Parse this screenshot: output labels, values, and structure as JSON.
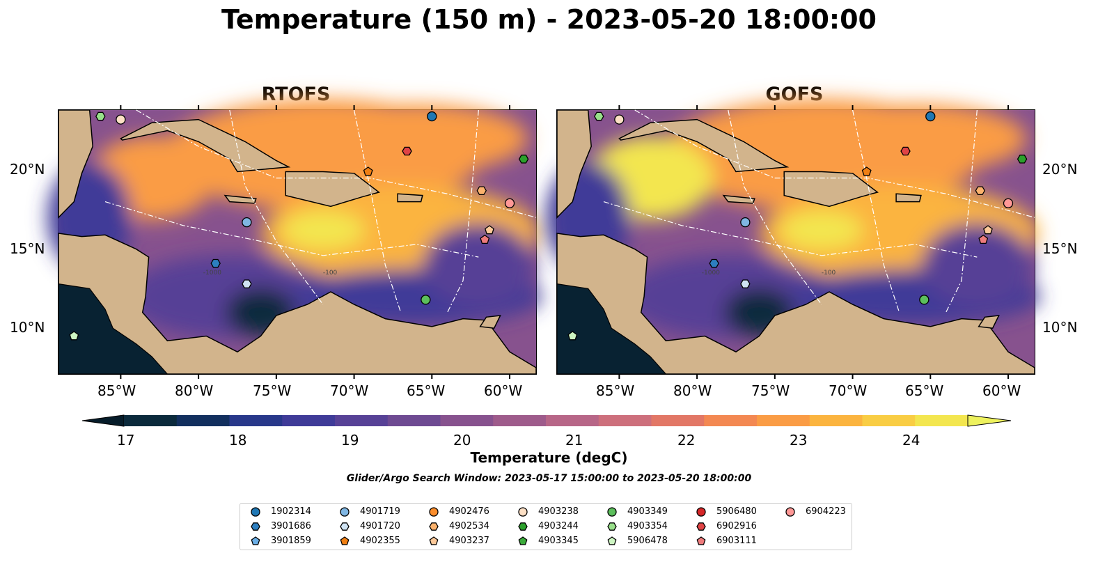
{
  "title": "Temperature (150 m) - 2023-05-20 18:00:00",
  "panels": [
    {
      "subtitle": "RTOFS"
    },
    {
      "subtitle": "GOFS"
    }
  ],
  "axes": {
    "lon_ticks": [
      "85°W",
      "80°W",
      "75°W",
      "70°W",
      "65°W",
      "60°W"
    ],
    "lat_ticks": [
      "20°N",
      "15°N",
      "10°N"
    ]
  },
  "contour_labels": [
    "-100",
    "-1000"
  ],
  "colorbar": {
    "ticks": [
      "17",
      "18",
      "19",
      "20",
      "21",
      "22",
      "23",
      "24"
    ],
    "label": "Temperature (degC)",
    "colors": [
      "#0b2a3c",
      "#122f5e",
      "#28388a",
      "#3f3b98",
      "#574196",
      "#6e4a92",
      "#87528e",
      "#9e5b8b",
      "#b76687",
      "#cd6f7c",
      "#e27766",
      "#f38852",
      "#fa9c45",
      "#fbb43f",
      "#f9cd44",
      "#f3e64f"
    ],
    "under_color": "#061c2a",
    "over_color": "#eef25e"
  },
  "search_window": "Glider/Argo Search Window: 2023-05-17 15:00:00 to 2023-05-20 18:00:00",
  "legend": [
    {
      "id": "1902314",
      "marker": "circle",
      "color": "#1f77b4"
    },
    {
      "id": "3901686",
      "marker": "hexagon",
      "color": "#2d7fc0"
    },
    {
      "id": "3901859",
      "marker": "pentagon",
      "color": "#6aaee6"
    },
    {
      "id": "4901719",
      "marker": "circle",
      "color": "#7fb6e3"
    },
    {
      "id": "4901720",
      "marker": "hexagon",
      "color": "#cfe3f3"
    },
    {
      "id": "4902355",
      "marker": "pentagon",
      "color": "#f07f13"
    },
    {
      "id": "4902476",
      "marker": "circle",
      "color": "#fb8d2b"
    },
    {
      "id": "4902534",
      "marker": "hexagon",
      "color": "#fbb26d"
    },
    {
      "id": "4903237",
      "marker": "pentagon",
      "color": "#fdc999"
    },
    {
      "id": "4903238",
      "marker": "circle",
      "color": "#fde0c5"
    },
    {
      "id": "4903244",
      "marker": "hexagon",
      "color": "#2ca02c"
    },
    {
      "id": "4903345",
      "marker": "pentagon",
      "color": "#3bab3b"
    },
    {
      "id": "4903349",
      "marker": "circle",
      "color": "#5cbf5c"
    },
    {
      "id": "4903354",
      "marker": "hexagon",
      "color": "#98df8a"
    },
    {
      "id": "5906478",
      "marker": "pentagon",
      "color": "#cdf5c2"
    },
    {
      "id": "5906480",
      "marker": "circle",
      "color": "#d62728"
    },
    {
      "id": "6902916",
      "marker": "hexagon",
      "color": "#e04445"
    },
    {
      "id": "6903111",
      "marker": "pentagon",
      "color": "#ee7b7c"
    },
    {
      "id": "6904223",
      "marker": "circle",
      "color": "#ff9896"
    }
  ],
  "floats": [
    {
      "id": "4903354",
      "lon": -86.3,
      "lat": 23.4
    },
    {
      "id": "4903238",
      "lon": -85.0,
      "lat": 23.2
    },
    {
      "id": "1902314",
      "lon": -65.0,
      "lat": 23.4
    },
    {
      "id": "6902916",
      "lon": -66.6,
      "lat": 21.2
    },
    {
      "id": "4903244",
      "lon": -59.1,
      "lat": 20.7
    },
    {
      "id": "4902355",
      "lon": -69.1,
      "lat": 19.9
    },
    {
      "id": "4902534",
      "lon": -61.8,
      "lat": 18.7
    },
    {
      "id": "6904223",
      "lon": -60.0,
      "lat": 17.9
    },
    {
      "id": "4901719",
      "lon": -76.9,
      "lat": 16.7
    },
    {
      "id": "4903237",
      "lon": -61.3,
      "lat": 16.2
    },
    {
      "id": "6903111",
      "lon": -61.6,
      "lat": 15.6
    },
    {
      "id": "3901686",
      "lon": -78.9,
      "lat": 14.1
    },
    {
      "id": "4901720",
      "lon": -76.9,
      "lat": 12.8
    },
    {
      "id": "4903349",
      "lon": -65.4,
      "lat": 11.8
    },
    {
      "id": "5906478",
      "lon": -88.0,
      "lat": 9.5
    }
  ]
}
